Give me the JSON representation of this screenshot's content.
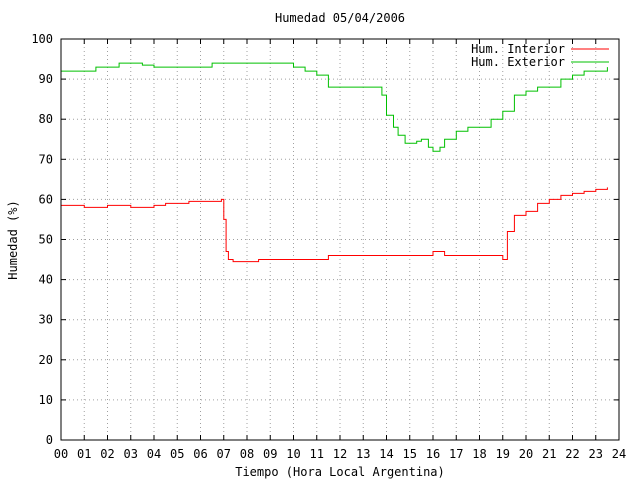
{
  "chart_data": {
    "type": "line",
    "title": "Humedad 05/04/2006",
    "xlabel": "Tiempo (Hora Local Argentina)",
    "ylabel": "Humedad (%)",
    "xlim": [
      0,
      24
    ],
    "ylim": [
      0,
      100
    ],
    "grid": true,
    "legend_position": "top-right",
    "x_ticks": [
      "00",
      "01",
      "02",
      "03",
      "04",
      "05",
      "06",
      "07",
      "08",
      "09",
      "10",
      "11",
      "12",
      "13",
      "14",
      "15",
      "16",
      "17",
      "18",
      "19",
      "20",
      "21",
      "22",
      "23",
      "24"
    ],
    "y_ticks": [
      "0",
      "10",
      "20",
      "30",
      "40",
      "50",
      "60",
      "70",
      "80",
      "90",
      "100"
    ],
    "series": [
      {
        "name": "Hum. Interior",
        "color": "#ff0000",
        "x": [
          0.0,
          0.5,
          1.0,
          1.5,
          2.0,
          2.5,
          3.0,
          3.5,
          4.0,
          4.5,
          5.0,
          5.5,
          6.0,
          6.5,
          6.9,
          7.0,
          7.1,
          7.2,
          7.4,
          7.6,
          8.0,
          8.5,
          9.0,
          10.0,
          11.0,
          11.5,
          12.0,
          13.0,
          13.5,
          14.0,
          15.0,
          15.5,
          16.0,
          16.5,
          17.0,
          18.0,
          18.5,
          19.0,
          19.2,
          19.5,
          20.0,
          20.5,
          21.0,
          21.5,
          22.0,
          22.5,
          23.0,
          23.5
        ],
        "y": [
          58.5,
          58.5,
          58,
          58,
          58.5,
          58.5,
          58,
          58,
          58.5,
          59,
          59,
          59.5,
          59.5,
          59.5,
          60,
          55,
          47,
          45,
          44.5,
          44.5,
          44.5,
          45,
          45,
          45,
          45,
          46,
          46,
          46,
          46,
          46,
          46,
          46,
          47,
          46,
          46,
          46,
          46,
          45,
          52,
          56,
          57,
          59,
          60,
          61,
          61.5,
          62,
          62.5,
          63
        ]
      },
      {
        "name": "Hum. Exterior",
        "color": "#00c000",
        "x": [
          0.0,
          1.0,
          1.5,
          2.0,
          2.5,
          3.0,
          3.5,
          4.0,
          5.0,
          6.0,
          6.5,
          7.0,
          8.0,
          9.0,
          10.0,
          10.5,
          11.0,
          11.5,
          12.0,
          12.5,
          13.0,
          13.5,
          13.8,
          14.0,
          14.3,
          14.5,
          14.8,
          15.0,
          15.3,
          15.5,
          15.8,
          16.0,
          16.3,
          16.5,
          17.0,
          17.5,
          18.0,
          18.5,
          19.0,
          19.5,
          20.0,
          20.5,
          21.0,
          21.5,
          22.0,
          22.5,
          23.0,
          23.5
        ],
        "y": [
          92,
          92,
          93,
          93,
          94,
          94,
          93.5,
          93,
          93,
          93,
          94,
          94,
          94,
          94,
          93,
          92,
          91,
          88,
          88,
          88,
          88,
          88,
          86,
          81,
          78,
          76,
          74,
          74,
          74.5,
          75,
          73,
          72,
          73,
          75,
          77,
          78,
          78,
          80,
          82,
          86,
          87,
          88,
          88,
          90,
          91,
          92,
          92,
          93
        ]
      }
    ]
  }
}
